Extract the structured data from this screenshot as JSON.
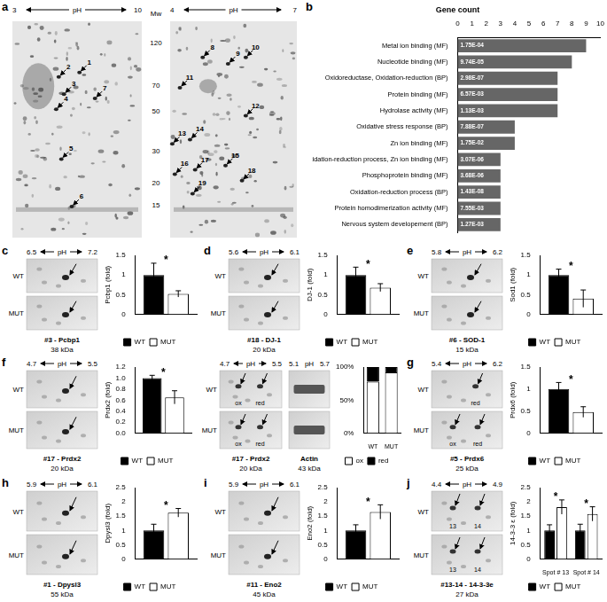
{
  "figure": {
    "panels": [
      {
        "letter": "a",
        "gels": [
          {
            "ph_label": "pH",
            "ph": [
              "3",
              "10"
            ],
            "spots": [
              "1",
              "2",
              "3",
              "4",
              "5",
              "6",
              "7"
            ]
          },
          {
            "ph_label": "pH",
            "ph": [
              "4",
              "7"
            ],
            "spots": [
              "8",
              "9",
              "10",
              "11",
              "12",
              "13",
              "14",
              "15",
              "16",
              "17",
              "18",
              "19"
            ]
          }
        ],
        "mw_label": "Mw",
        "mw_ticks": [
          120,
          70,
          50,
          30,
          20,
          15
        ]
      },
      {
        "letter": "b"
      },
      {
        "letter": "c",
        "gels": [
          {
            "ph_label": "pH",
            "ph": [
              "6.5",
              "7.2"
            ],
            "rows": [
              "WT",
              "MUT"
            ],
            "tags": [
              [],
              []
            ],
            "caption": [
              "#3 - Pcbp1",
              "38 kDa"
            ]
          }
        ]
      },
      {
        "letter": "d",
        "gels": [
          {
            "ph_label": "pH",
            "ph": [
              "5.6",
              "6.1"
            ],
            "rows": [
              "WT",
              "MUT"
            ],
            "tags": [
              [],
              []
            ],
            "caption": [
              "#18 - DJ-1",
              "20 kDa"
            ]
          }
        ]
      },
      {
        "letter": "e",
        "gels": [
          {
            "ph_label": "pH",
            "ph": [
              "5.8",
              "6.2"
            ],
            "rows": [
              "WT",
              "MUT"
            ],
            "tags": [
              [],
              []
            ],
            "caption": [
              "#6 - SOD-1",
              "15 kDa"
            ]
          }
        ]
      },
      {
        "letter": "f",
        "gels": [
          {
            "ph_label": "pH",
            "ph": [
              "4.7",
              "5.5"
            ],
            "rows": [
              "WT",
              "MUT"
            ],
            "tags": [
              [],
              []
            ],
            "caption": [
              "#17 - Prdx2",
              "20 kDa"
            ]
          },
          {
            "ph_label": "pH",
            "ph": [
              "4.7",
              "5.5"
            ],
            "rows": [
              "WT",
              "MUT"
            ],
            "tags": [
              [
                "ox",
                "red"
              ],
              [
                "ox",
                "red"
              ]
            ],
            "caption": [
              "#17 - Prdx2",
              "20 kDa"
            ]
          },
          {
            "ph_label": "pH",
            "ph": [
              "5.1",
              "5.7"
            ],
            "caption": [
              "Actin",
              "43 kDa"
            ]
          }
        ]
      },
      {
        "letter": "g",
        "gels": [
          {
            "ph_label": "pH",
            "ph": [
              "5.4",
              "6.2"
            ],
            "rows": [
              "WT",
              "MUT"
            ],
            "tags": [
              [
                "red"
              ],
              [
                "ox",
                "red"
              ]
            ],
            "caption": [
              "#5 - Prdx6",
              "25 kDa"
            ]
          }
        ]
      },
      {
        "letter": "h",
        "gels": [
          {
            "ph_label": "pH",
            "ph": [
              "5.9",
              "6.1"
            ],
            "rows": [
              "WT",
              "MUT"
            ],
            "tags": [
              [],
              []
            ],
            "caption": [
              "#1 - Dpysl3",
              "55 kDa"
            ]
          }
        ]
      },
      {
        "letter": "i",
        "gels": [
          {
            "ph_label": "pH",
            "ph": [
              "5.9",
              "6.1"
            ],
            "rows": [
              "WT",
              "MUT"
            ],
            "tags": [
              [],
              []
            ],
            "caption": [
              "#11 - Eno2",
              "45 kDa"
            ]
          }
        ]
      },
      {
        "letter": "j",
        "gels": [
          {
            "ph_label": "pH",
            "ph": [
              "4.4",
              "4.9"
            ],
            "rows": [
              "WT",
              "MUT"
            ],
            "tags": [
              [
                "13",
                "14"
              ],
              [
                "13",
                "14"
              ]
            ],
            "caption": [
              "#13-14 - 14-3-3e",
              "27 kDa"
            ]
          }
        ]
      }
    ]
  },
  "chart_data": [
    {
      "type": "bar",
      "orientation": "horizontal",
      "title": "Gene count",
      "categories": [
        "Metal ion binding (MF)",
        "Nucleotide binding (MF)",
        "Oxidoreductase, Oxidation-reduction (BP)",
        "Protein binding (MF)",
        "Hydrolase activity (MF)",
        "Oxidative stress response (BP)",
        "Zn ion binding (MF)",
        "Oxidation-reduction process, Zn ion binding (MF)",
        "Phosphoprotein binding (MF)",
        "Oxidation-reduction process (BP)",
        "Protein homodimerization activity (MF)",
        "Nervous system developement (BP)"
      ],
      "values": [
        9,
        8,
        7,
        7,
        7,
        4,
        4,
        3,
        3,
        3,
        3,
        3
      ],
      "annotations": [
        "1.75E-04",
        "9.74E-05",
        "2.98E-07",
        "6.57E-03",
        "1.13E-03",
        "7.88E-07",
        "1.75E-02",
        "3.07E-06",
        "3.68E-06",
        "1.43E-08",
        "7.55E-03",
        "1.27E-03"
      ],
      "color": "#666666",
      "xlim": [
        0,
        10
      ],
      "xticks": [
        0,
        1,
        2,
        3,
        4,
        5,
        6,
        7,
        8,
        9,
        10
      ],
      "grid": false
    },
    {
      "type": "bar",
      "y_label": "Pcbp1 (fold)",
      "categories": [
        null
      ],
      "series": [
        {
          "name": "WT",
          "color": "#000000",
          "values": [
            1
          ],
          "errors": [
            0.3
          ]
        },
        {
          "name": "MUT",
          "color": "#ffffff",
          "values": [
            0.52
          ],
          "errors": [
            0.08
          ]
        }
      ],
      "annotations": [
        "*"
      ],
      "ylim": [
        0,
        1.5
      ],
      "yticks": [
        0,
        0.5,
        1,
        1.5
      ],
      "grid": false,
      "legend": "bottom"
    },
    {
      "type": "bar",
      "y_label": "DJ-1 (fold)",
      "categories": [
        null
      ],
      "series": [
        {
          "name": "WT",
          "color": "#000000",
          "values": [
            1
          ],
          "errors": [
            0.2
          ]
        },
        {
          "name": "MUT",
          "color": "#ffffff",
          "values": [
            0.68
          ],
          "errors": [
            0.1
          ]
        }
      ],
      "annotations": [
        "*"
      ],
      "ylim": [
        0,
        1.5
      ],
      "yticks": [
        0,
        0.5,
        1,
        1.5
      ],
      "grid": false,
      "legend": "bottom"
    },
    {
      "type": "bar",
      "y_label": "Sod1 (fold)",
      "categories": [
        null
      ],
      "series": [
        {
          "name": "WT",
          "color": "#000000",
          "values": [
            1
          ],
          "errors": [
            0.15
          ]
        },
        {
          "name": "MUT",
          "color": "#ffffff",
          "values": [
            0.4
          ],
          "errors": [
            0.22
          ]
        }
      ],
      "annotations": [
        "*"
      ],
      "ylim": [
        0,
        1.5
      ],
      "yticks": [
        0,
        0.5,
        1,
        1.5
      ],
      "grid": false,
      "legend": "bottom"
    },
    {
      "type": "bar",
      "y_label": "Prdx2 (fold)",
      "categories": [
        null
      ],
      "series": [
        {
          "name": "WT",
          "color": "#000000",
          "values": [
            1
          ],
          "errors": [
            0.05
          ]
        },
        {
          "name": "MUT",
          "color": "#ffffff",
          "values": [
            0.65
          ],
          "errors": [
            0.12
          ]
        }
      ],
      "annotations": [
        "*"
      ],
      "ylim": [
        0,
        1.2
      ],
      "yticks": [
        {
          "value": 0,
          "label": "0.0"
        },
        0.2,
        0.4,
        0.6,
        0.8,
        {
          "value": 1,
          "label": "1.0"
        },
        1.2
      ],
      "grid": false,
      "legend": "bottom"
    },
    {
      "type": "bar",
      "stacked": true,
      "categories": [
        "WT",
        "MUT"
      ],
      "series": [
        {
          "name": "ox",
          "color": "#ffffff",
          "values": [
            78,
            92
          ]
        },
        {
          "name": "red",
          "color": "#000000",
          "values": [
            22,
            8
          ]
        }
      ],
      "ylim": [
        0,
        100
      ],
      "yticks": [
        {
          "value": 0,
          "label": "0%"
        },
        {
          "value": 50,
          "label": "50%"
        },
        {
          "value": 100,
          "label": "100%"
        }
      ],
      "grid": false,
      "legend": "bottom"
    },
    {
      "type": "bar",
      "y_label": "Prdx6 (fold)",
      "categories": [
        null
      ],
      "series": [
        {
          "name": "WT",
          "color": "#000000",
          "values": [
            1
          ],
          "errors": [
            0.15
          ]
        },
        {
          "name": "MUT",
          "color": "#ffffff",
          "values": [
            0.48
          ],
          "errors": [
            0.12
          ]
        }
      ],
      "annotations": [
        "*"
      ],
      "ylim": [
        0,
        1.5
      ],
      "yticks": [
        0,
        0.5,
        1,
        1.5
      ],
      "grid": false,
      "legend": "bottom"
    },
    {
      "type": "bar",
      "y_label": "Dpysl3 (fold)",
      "categories": [
        null
      ],
      "series": [
        {
          "name": "WT",
          "color": "#000000",
          "values": [
            1
          ],
          "errors": [
            0.22
          ]
        },
        {
          "name": "MUT",
          "color": "#ffffff",
          "values": [
            1.62
          ],
          "errors": [
            0.15
          ]
        }
      ],
      "annotations": [
        "*"
      ],
      "ylim": [
        0,
        2.5
      ],
      "yticks": [
        0,
        0.5,
        1,
        1.5,
        2,
        2.5
      ],
      "grid": false,
      "legend": "bottom"
    },
    {
      "type": "bar",
      "y_label": "Eno2 (fold)",
      "categories": [
        null
      ],
      "series": [
        {
          "name": "WT",
          "color": "#000000",
          "values": [
            1
          ],
          "errors": [
            0.2
          ]
        },
        {
          "name": "MUT",
          "color": "#ffffff",
          "values": [
            1.65
          ],
          "errors": [
            0.25
          ]
        }
      ],
      "annotations": [
        "*"
      ],
      "ylim": [
        0,
        2.5
      ],
      "yticks": [
        0,
        0.5,
        1,
        1.5,
        2,
        2.5
      ],
      "grid": false,
      "legend": "bottom"
    },
    {
      "type": "bar",
      "y_label": "14-3-3 ε (fold)",
      "categories": [
        "Spot # 13",
        "Spot # 14"
      ],
      "series": [
        {
          "name": "WT",
          "color": "#000000",
          "values": [
            1,
            1
          ],
          "errors": [
            0.2,
            0.22
          ]
        },
        {
          "name": "MUT",
          "color": "#ffffff",
          "values": [
            1.82,
            1.58
          ],
          "errors": [
            0.25,
            0.25
          ]
        }
      ],
      "annotations": [
        "*",
        "*"
      ],
      "ylim": [
        0,
        2.5
      ],
      "yticks": [
        0,
        0.5,
        1,
        1.5,
        2,
        2.5
      ],
      "grid": false,
      "legend": "bottom"
    }
  ]
}
